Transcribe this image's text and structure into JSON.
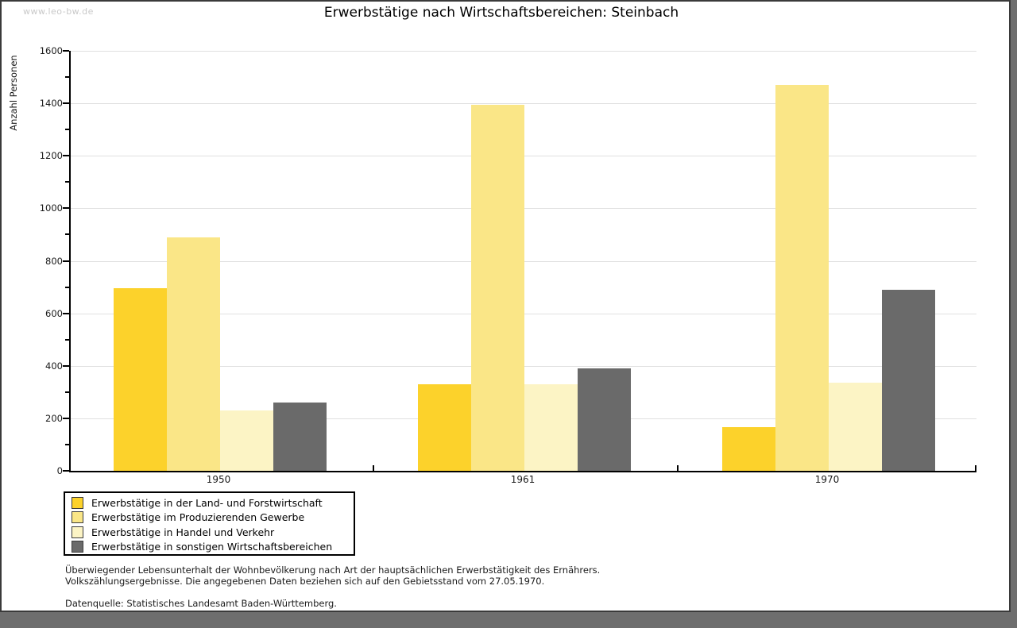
{
  "watermark": "www.leo-bw.de",
  "chart_data": {
    "type": "bar",
    "title": "Erwerbstätige nach Wirtschaftsbereichen: Steinbach",
    "ylabel": "Anzahl Personen",
    "xlabel": "",
    "categories": [
      "1950",
      "1961",
      "1970"
    ],
    "series": [
      {
        "name": "Erwerbstätige in der Land- und Forstwirtschaft",
        "color": "#fcd22b",
        "values": [
          695,
          330,
          165
        ]
      },
      {
        "name": "Erwerbstätige im Produzierenden Gewerbe",
        "color": "#fae687",
        "values": [
          890,
          1395,
          1470
        ]
      },
      {
        "name": "Erwerbstätige in Handel und Verkehr",
        "color": "#fcf4c5",
        "values": [
          230,
          330,
          335
        ]
      },
      {
        "name": "Erwerbstätige in sonstigen Wirtschaftsbereichen",
        "color": "#6a6a6a",
        "values": [
          260,
          390,
          690
        ]
      }
    ],
    "ylim": [
      0,
      1600
    ],
    "yticks": [
      0,
      200,
      400,
      600,
      800,
      1000,
      1200,
      1400,
      1600
    ],
    "y_minor_step": 100,
    "grid": true,
    "gridline_color": "#e0e0e0",
    "legend_position": "bottom-left"
  },
  "footer": {
    "line1": "Überwiegender Lebensunterhalt der Wohnbevölkerung nach Art der hauptsächlichen Erwerbstätigkeit des Ernährers.",
    "line2": "Volkszählungsergebnisse. Die angegebenen Daten beziehen sich auf den Gebietsstand vom 27.05.1970.",
    "source": "Datenquelle: Statistisches Landesamt Baden-Württemberg."
  }
}
